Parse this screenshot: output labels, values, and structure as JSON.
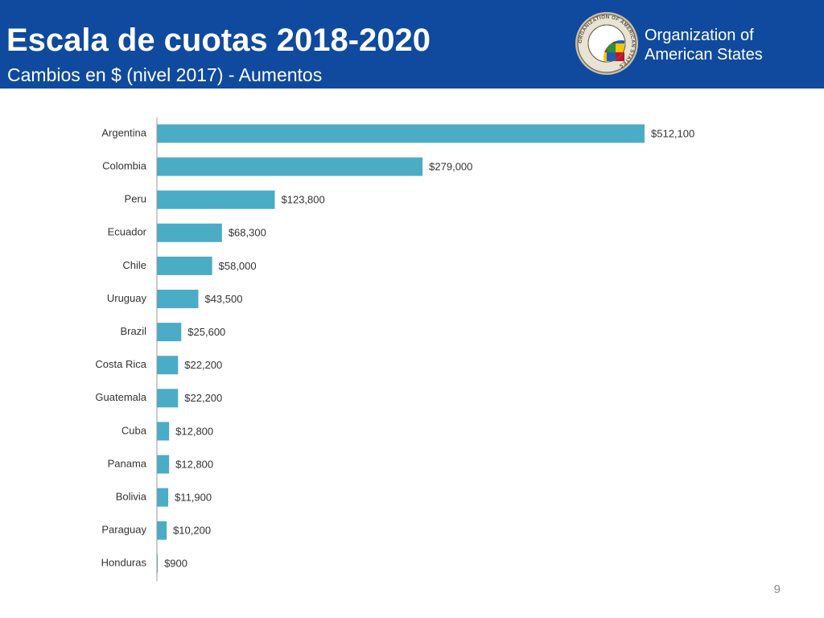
{
  "header": {
    "title": "Escala de cuotas 2018-2020",
    "subtitle": "Cambios en $ (nivel 2017) - Aumentos",
    "org_name_line1": "Organization of",
    "org_name_line2": "American States",
    "logo_text": "ORGANIZATION OF AMERICAN STATES",
    "background_color": "#0f4a9e"
  },
  "chart_data": {
    "type": "bar",
    "orientation": "horizontal",
    "categories": [
      "Argentina",
      "Colombia",
      "Peru",
      "Ecuador",
      "Chile",
      "Uruguay",
      "Brazil",
      "Costa Rica",
      "Guatemala",
      "Cuba",
      "Panama",
      "Bolivia",
      "Paraguay",
      "Honduras"
    ],
    "values": [
      512100,
      279000,
      123800,
      68300,
      58000,
      43500,
      25600,
      22200,
      22200,
      12800,
      12800,
      11900,
      10200,
      900
    ],
    "labels": [
      "$512,100",
      "$279,000",
      "$123,800",
      "$68,300",
      "$58,000",
      "$43,500",
      "$25,600",
      "$22,200",
      "$22,200",
      "$12,800",
      "$12,800",
      "$11,900",
      "$10,200",
      "$900"
    ],
    "title": "",
    "xlabel": "",
    "ylabel": "",
    "xlim": [
      0,
      512100
    ],
    "grid": false,
    "legend": "none",
    "bar_color": "#4bacc6"
  },
  "footer": {
    "page_number": "9"
  }
}
